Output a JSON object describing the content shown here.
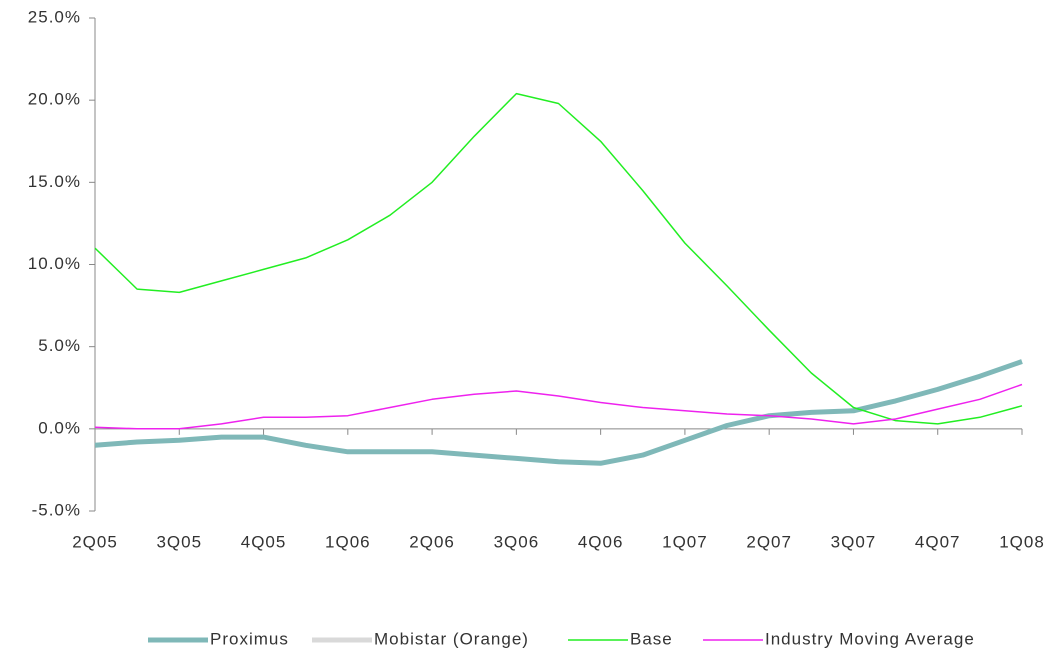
{
  "chart_data": {
    "type": "line",
    "categories": [
      "2Q05",
      null,
      "3Q05",
      null,
      "4Q05",
      null,
      "1Q06",
      null,
      "2Q06",
      null,
      "3Q06",
      null,
      "4Q06",
      null,
      "1Q07",
      null,
      "2Q07",
      null,
      "3Q07",
      null,
      "4Q07",
      null,
      "1Q08"
    ],
    "series": [
      {
        "name": "Proximus",
        "color": "#7fb8b8",
        "width": 5,
        "values": [
          -1.0,
          -0.8,
          -0.7,
          -0.5,
          -0.5,
          -1.0,
          -1.4,
          -1.4,
          -1.4,
          -1.6,
          -1.8,
          -2.0,
          -2.1,
          -1.6,
          -0.7,
          0.2,
          0.8,
          1.0,
          1.1,
          1.7,
          2.4,
          3.2,
          4.1
        ]
      },
      {
        "name": "Mobistar (Orange)",
        "color": "#d9d9d9",
        "width": 5,
        "values": [
          null,
          null,
          null,
          null,
          null,
          null,
          null,
          null,
          null,
          null,
          null,
          null,
          null,
          null,
          null,
          null,
          null,
          null,
          null,
          null,
          null,
          null,
          null
        ]
      },
      {
        "name": "Base",
        "color": "#22ee22",
        "width": 1.5,
        "values": [
          11.0,
          8.5,
          8.3,
          9.0,
          9.7,
          10.4,
          11.5,
          13.0,
          15.0,
          17.8,
          20.4,
          19.8,
          17.5,
          14.5,
          11.3,
          8.7,
          6.0,
          3.4,
          1.3,
          0.5,
          0.3,
          0.7,
          1.4
        ]
      },
      {
        "name": "Industry Moving Average",
        "color": "#ee22ee",
        "width": 1.5,
        "values": [
          0.1,
          0.0,
          0.0,
          0.3,
          0.7,
          0.7,
          0.8,
          1.3,
          1.8,
          2.1,
          2.3,
          2.0,
          1.6,
          1.3,
          1.1,
          0.9,
          0.8,
          0.6,
          0.3,
          0.6,
          1.2,
          1.8,
          2.7
        ]
      }
    ],
    "ylim": [
      -5,
      25
    ],
    "yticks": [
      {
        "value": -5,
        "label": "-5.0%"
      },
      {
        "value": 0,
        "label": "0.0%"
      },
      {
        "value": 5,
        "label": "5.0%"
      },
      {
        "value": 10,
        "label": "10.0%"
      },
      {
        "value": 15,
        "label": "15.0%"
      },
      {
        "value": 20,
        "label": "20.0%"
      },
      {
        "value": 25,
        "label": "25.0%"
      }
    ],
    "grid": false,
    "legend": "bottom"
  }
}
